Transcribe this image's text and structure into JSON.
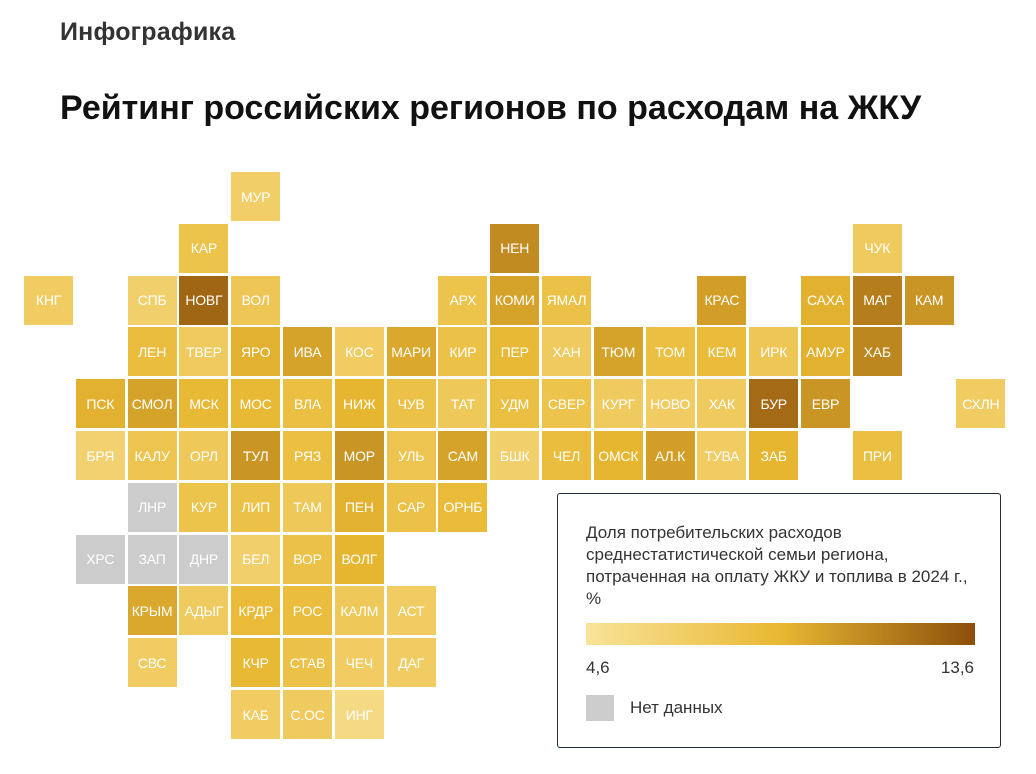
{
  "header": {
    "kicker": "Инфографика",
    "title": "Рейтинг российских регионов по расходам на ЖКУ"
  },
  "chart_data": {
    "type": "heatmap",
    "subtype": "tile-map",
    "value_range": [
      4.6,
      13.6
    ],
    "color_scale": [
      "#f9e39a",
      "#e8b832",
      "#8c4e0a"
    ],
    "no_data_color": "#cccccc",
    "legend": {
      "title": "Доля потребительских расходов среднестатистической семьи региона, потраченная на оплату ЖКУ и топлива в 2024 г., %",
      "min_label": "4,6",
      "max_label": "13,6",
      "no_data_label": "Нет данных",
      "placement": "bottom-right"
    },
    "tiles": [
      {
        "label": "МУР",
        "row": 0,
        "col": 4,
        "value": 6.8
      },
      {
        "label": "КАР",
        "row": 1,
        "col": 3,
        "value": 8.0
      },
      {
        "label": "НЕН",
        "row": 1,
        "col": 9,
        "value": 11.0
      },
      {
        "label": "ЧУК",
        "row": 1,
        "col": 16,
        "value": 7.2
      },
      {
        "label": "КНГ",
        "row": 2,
        "col": 0,
        "value": 7.0
      },
      {
        "label": "СПБ",
        "row": 2,
        "col": 2,
        "value": 6.6
      },
      {
        "label": "НОВГ",
        "row": 2,
        "col": 3,
        "value": 12.6
      },
      {
        "label": "ВОЛ",
        "row": 2,
        "col": 4,
        "value": 7.6
      },
      {
        "label": "АРХ",
        "row": 2,
        "col": 8,
        "value": 8.0
      },
      {
        "label": "КОМИ",
        "row": 2,
        "col": 9,
        "value": 10.0
      },
      {
        "label": "ЯМАЛ",
        "row": 2,
        "col": 10,
        "value": 8.2
      },
      {
        "label": "КРАС",
        "row": 2,
        "col": 13,
        "value": 10.2
      },
      {
        "label": "САХА",
        "row": 2,
        "col": 15,
        "value": 9.4
      },
      {
        "label": "МАГ",
        "row": 2,
        "col": 16,
        "value": 11.6
      },
      {
        "label": "КАМ",
        "row": 2,
        "col": 17,
        "value": 10.6
      },
      {
        "label": "ЛЕН",
        "row": 3,
        "col": 2,
        "value": 8.6
      },
      {
        "label": "ТВЕР",
        "row": 3,
        "col": 3,
        "value": 7.2
      },
      {
        "label": "ЯРО",
        "row": 3,
        "col": 4,
        "value": 9.4
      },
      {
        "label": "ИВА",
        "row": 3,
        "col": 5,
        "value": 10.0
      },
      {
        "label": "КОС",
        "row": 3,
        "col": 6,
        "value": 7.0
      },
      {
        "label": "МАРИ",
        "row": 3,
        "col": 7,
        "value": 9.8
      },
      {
        "label": "КИР",
        "row": 3,
        "col": 8,
        "value": 8.2
      },
      {
        "label": "ПЕР",
        "row": 3,
        "col": 9,
        "value": 9.0
      },
      {
        "label": "ХАН",
        "row": 3,
        "col": 10,
        "value": 7.2
      },
      {
        "label": "ТЮМ",
        "row": 3,
        "col": 11,
        "value": 10.0
      },
      {
        "label": "ТОМ",
        "row": 3,
        "col": 12,
        "value": 8.4
      },
      {
        "label": "КЕМ",
        "row": 3,
        "col": 13,
        "value": 8.8
      },
      {
        "label": "ИРК",
        "row": 3,
        "col": 14,
        "value": 7.6
      },
      {
        "label": "АМУР",
        "row": 3,
        "col": 15,
        "value": 9.4
      },
      {
        "label": "ХАБ",
        "row": 3,
        "col": 16,
        "value": 11.2
      },
      {
        "label": "ПСК",
        "row": 4,
        "col": 1,
        "value": 9.4
      },
      {
        "label": "СМОЛ",
        "row": 4,
        "col": 2,
        "value": 10.0
      },
      {
        "label": "МСК",
        "row": 4,
        "col": 3,
        "value": 9.0
      },
      {
        "label": "МОС",
        "row": 4,
        "col": 4,
        "value": 9.0
      },
      {
        "label": "ВЛА",
        "row": 4,
        "col": 5,
        "value": 8.4
      },
      {
        "label": "НИЖ",
        "row": 4,
        "col": 6,
        "value": 9.2
      },
      {
        "label": "ЧУВ",
        "row": 4,
        "col": 7,
        "value": 8.2
      },
      {
        "label": "ТАТ",
        "row": 4,
        "col": 8,
        "value": 7.4
      },
      {
        "label": "УДМ",
        "row": 4,
        "col": 9,
        "value": 8.4
      },
      {
        "label": "СВЕР",
        "row": 4,
        "col": 10,
        "value": 8.0
      },
      {
        "label": "КУРГ",
        "row": 4,
        "col": 11,
        "value": 7.2
      },
      {
        "label": "НОВО",
        "row": 4,
        "col": 12,
        "value": 7.0
      },
      {
        "label": "ХАК",
        "row": 4,
        "col": 13,
        "value": 7.2
      },
      {
        "label": "БУР",
        "row": 4,
        "col": 14,
        "value": 12.4
      },
      {
        "label": "ЕВР",
        "row": 4,
        "col": 15,
        "value": 10.6
      },
      {
        "label": "СХЛН",
        "row": 4,
        "col": 18,
        "value": 7.0
      },
      {
        "label": "БРЯ",
        "row": 5,
        "col": 1,
        "value": 6.4
      },
      {
        "label": "КАЛУ",
        "row": 5,
        "col": 2,
        "value": 7.8
      },
      {
        "label": "ОРЛ",
        "row": 5,
        "col": 3,
        "value": 7.4
      },
      {
        "label": "ТУЛ",
        "row": 5,
        "col": 4,
        "value": 10.6
      },
      {
        "label": "РЯЗ",
        "row": 5,
        "col": 5,
        "value": 8.4
      },
      {
        "label": "МОР",
        "row": 5,
        "col": 6,
        "value": 10.6
      },
      {
        "label": "УЛЬ",
        "row": 5,
        "col": 7,
        "value": 7.8
      },
      {
        "label": "САМ",
        "row": 5,
        "col": 8,
        "value": 10.0
      },
      {
        "label": "БШК",
        "row": 5,
        "col": 9,
        "value": 6.6
      },
      {
        "label": "ЧЕЛ",
        "row": 5,
        "col": 10,
        "value": 8.6
      },
      {
        "label": "ОМСК",
        "row": 5,
        "col": 11,
        "value": 9.2
      },
      {
        "label": "АЛ.К",
        "row": 5,
        "col": 12,
        "value": 10.2
      },
      {
        "label": "ТУВА",
        "row": 5,
        "col": 13,
        "value": 7.0
      },
      {
        "label": "ЗАБ",
        "row": 5,
        "col": 14,
        "value": 9.2
      },
      {
        "label": "ПРИ",
        "row": 5,
        "col": 16,
        "value": 8.4
      },
      {
        "label": "ЛНР",
        "row": 6,
        "col": 2,
        "value": null
      },
      {
        "label": "КУР",
        "row": 6,
        "col": 3,
        "value": 8.0
      },
      {
        "label": "ЛИП",
        "row": 6,
        "col": 4,
        "value": 8.2
      },
      {
        "label": "ТАМ",
        "row": 6,
        "col": 5,
        "value": 7.4
      },
      {
        "label": "ПЕН",
        "row": 6,
        "col": 6,
        "value": 9.4
      },
      {
        "label": "САР",
        "row": 6,
        "col": 7,
        "value": 8.2
      },
      {
        "label": "ОРНБ",
        "row": 6,
        "col": 8,
        "value": 8.8
      },
      {
        "label": "ХРС",
        "row": 7,
        "col": 1,
        "value": null
      },
      {
        "label": "ЗАП",
        "row": 7,
        "col": 2,
        "value": null
      },
      {
        "label": "ДНР",
        "row": 7,
        "col": 3,
        "value": null
      },
      {
        "label": "БЕЛ",
        "row": 7,
        "col": 4,
        "value": 6.6
      },
      {
        "label": "ВОР",
        "row": 7,
        "col": 5,
        "value": 8.2
      },
      {
        "label": "ВОЛГ",
        "row": 7,
        "col": 6,
        "value": 9.2
      },
      {
        "label": "КРЫМ",
        "row": 8,
        "col": 2,
        "value": 9.8
      },
      {
        "label": "АДЫГ",
        "row": 8,
        "col": 3,
        "value": 7.2
      },
      {
        "label": "КРДР",
        "row": 8,
        "col": 4,
        "value": 8.8
      },
      {
        "label": "РОС",
        "row": 8,
        "col": 5,
        "value": 8.6
      },
      {
        "label": "КАЛМ",
        "row": 8,
        "col": 6,
        "value": 7.4
      },
      {
        "label": "АСТ",
        "row": 8,
        "col": 7,
        "value": 7.0
      },
      {
        "label": "СВС",
        "row": 9,
        "col": 2,
        "value": 7.0
      },
      {
        "label": "КЧР",
        "row": 9,
        "col": 4,
        "value": 9.0
      },
      {
        "label": "СТАВ",
        "row": 9,
        "col": 5,
        "value": 8.2
      },
      {
        "label": "ЧЕЧ",
        "row": 9,
        "col": 6,
        "value": 7.0
      },
      {
        "label": "ДАГ",
        "row": 9,
        "col": 7,
        "value": 7.0
      },
      {
        "label": "КАБ",
        "row": 10,
        "col": 4,
        "value": 7.0
      },
      {
        "label": "С.ОС",
        "row": 10,
        "col": 5,
        "value": 7.2
      },
      {
        "label": "ИНГ",
        "row": 10,
        "col": 6,
        "value": 5.6
      }
    ]
  }
}
